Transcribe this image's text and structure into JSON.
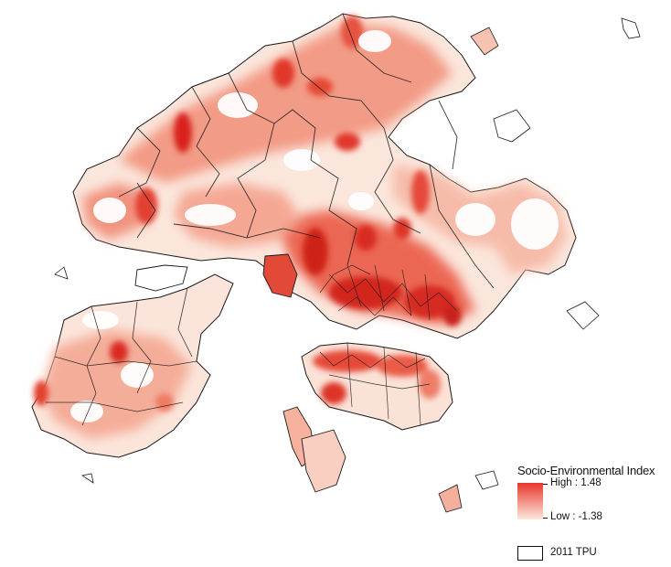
{
  "legend": {
    "title": "Socio-Environmental Index",
    "high_label": "High : 1.48",
    "low_label": "Low : -1.38",
    "high_value": 1.48,
    "low_value": -1.38,
    "high_color": "#e8362b",
    "low_color": "#fde9dd",
    "boundary_label": "2011 TPU",
    "boundary_color": "#111111"
  }
}
